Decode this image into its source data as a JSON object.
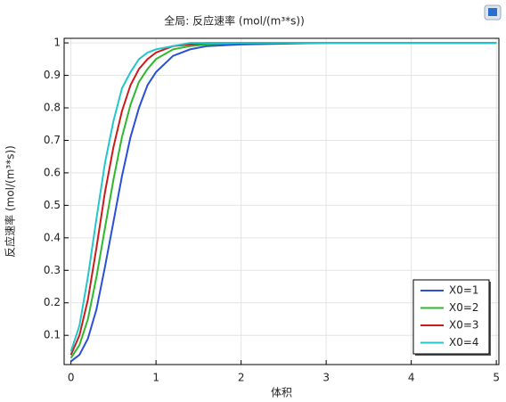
{
  "chart_data": {
    "type": "line",
    "title": "全局: 反应速率 (mol/(m³*s))",
    "x_label": "体积",
    "y_label": "反应速率 (mol/(m³*s))",
    "x": [
      0,
      0.1,
      0.2,
      0.3,
      0.4,
      0.5,
      0.6,
      0.7,
      0.8,
      0.9,
      1,
      1.2,
      1.4,
      1.6,
      2,
      3,
      4,
      5
    ],
    "series": [
      {
        "name": "X0=1",
        "color": "#2a4fd8",
        "values": [
          0.02,
          0.04,
          0.09,
          0.18,
          0.31,
          0.45,
          0.59,
          0.71,
          0.8,
          0.87,
          0.91,
          0.96,
          0.98,
          0.99,
          0.995,
          1,
          1,
          1
        ]
      },
      {
        "name": "X0=2",
        "color": "#2db82d",
        "values": [
          0.03,
          0.07,
          0.15,
          0.28,
          0.43,
          0.58,
          0.71,
          0.81,
          0.88,
          0.92,
          0.95,
          0.98,
          0.99,
          0.995,
          1,
          1,
          1,
          1
        ]
      },
      {
        "name": "X0=3",
        "color": "#cc1a1a",
        "values": [
          0.04,
          0.1,
          0.21,
          0.37,
          0.54,
          0.68,
          0.79,
          0.87,
          0.92,
          0.95,
          0.97,
          0.99,
          0.995,
          1,
          1,
          1,
          1,
          1
        ]
      },
      {
        "name": "X0=4",
        "color": "#22c6cc",
        "values": [
          0.05,
          0.13,
          0.28,
          0.46,
          0.63,
          0.76,
          0.86,
          0.91,
          0.95,
          0.97,
          0.98,
          0.99,
          1,
          1,
          1,
          1,
          1,
          1
        ]
      }
    ],
    "xlim": [
      -0.08,
      5.03
    ],
    "ylim": [
      0.01,
      1.014
    ],
    "xticks": [
      0,
      1,
      2,
      3,
      4,
      5
    ],
    "yticks": [
      0.1,
      0.2,
      0.3,
      0.4,
      0.5,
      0.6,
      0.7,
      0.8,
      0.9,
      1
    ],
    "grid": true,
    "legend": "lower right"
  }
}
